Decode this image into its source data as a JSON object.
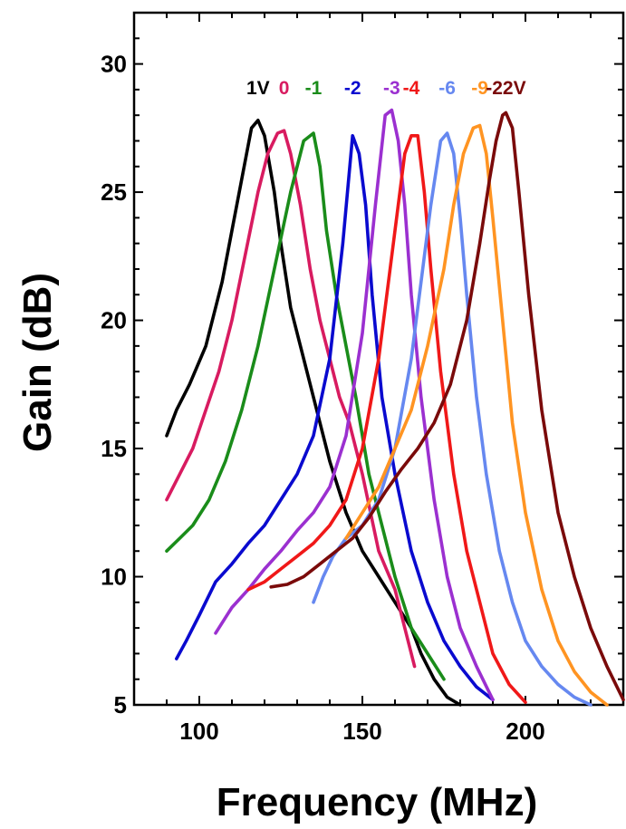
{
  "chart_data": {
    "type": "line",
    "title": "",
    "xlabel": "Frequency (MHz)",
    "ylabel": "Gain (dB)",
    "xlim": [
      80,
      230
    ],
    "ylim": [
      5,
      32
    ],
    "xticks": [
      100,
      150,
      200
    ],
    "yticks": [
      5,
      10,
      15,
      20,
      25,
      30
    ],
    "grid": false,
    "legend": "top, labels placed above each curve peak",
    "series": [
      {
        "name": "1V",
        "color": "#000000",
        "x": [
          90,
          93,
          97,
          102,
          107,
          110,
          113,
          116,
          118,
          120,
          123,
          125,
          128,
          132,
          136,
          140,
          145,
          150,
          155,
          160,
          165,
          168,
          172,
          176,
          180
        ],
        "y": [
          15.5,
          16.5,
          17.5,
          19.0,
          21.5,
          23.5,
          25.5,
          27.5,
          27.8,
          27.2,
          25.0,
          23.0,
          20.5,
          18.5,
          16.5,
          14.5,
          12.5,
          11.0,
          10.0,
          9.0,
          8.0,
          7.0,
          6.0,
          5.3,
          5.0
        ]
      },
      {
        "name": "0",
        "color": "#D81B60",
        "x": [
          90,
          94,
          98,
          102,
          106,
          110,
          114,
          118,
          121,
          124,
          126,
          128,
          131,
          134,
          137,
          140,
          143,
          146,
          150,
          155,
          160,
          163,
          166
        ],
        "y": [
          13.0,
          14.0,
          15.0,
          16.5,
          18.0,
          20.0,
          22.5,
          25.0,
          26.5,
          27.3,
          27.4,
          26.5,
          24.5,
          22.0,
          20.0,
          18.5,
          17.0,
          16.0,
          14.0,
          11.0,
          9.5,
          8.0,
          6.5
        ]
      },
      {
        "name": "-1",
        "color": "#1A8C1A",
        "x": [
          90,
          94,
          98,
          103,
          108,
          113,
          118,
          123,
          128,
          132,
          135,
          137,
          139,
          142,
          145,
          148,
          152,
          156,
          160,
          165,
          170,
          175
        ],
        "y": [
          11.0,
          11.5,
          12.0,
          13.0,
          14.5,
          16.5,
          19.0,
          22.0,
          25.0,
          27.0,
          27.3,
          26.0,
          23.5,
          21.0,
          19.0,
          17.0,
          14.0,
          12.0,
          10.0,
          8.0,
          7.0,
          6.0
        ]
      },
      {
        "name": "-2",
        "color": "#0A0ACF",
        "x": [
          93,
          96,
          100,
          105,
          110,
          115,
          120,
          125,
          130,
          135,
          140,
          144,
          147,
          149,
          151,
          153,
          156,
          160,
          165,
          170,
          175,
          180,
          185,
          190
        ],
        "y": [
          6.8,
          7.5,
          8.5,
          9.8,
          10.5,
          11.3,
          12.0,
          13.0,
          14.0,
          15.5,
          18.5,
          23.0,
          27.2,
          26.5,
          24.5,
          21.0,
          17.0,
          14.0,
          11.0,
          9.0,
          7.5,
          6.5,
          5.7,
          5.2
        ]
      },
      {
        "name": "-3",
        "color": "#9B30D0",
        "x": [
          105,
          110,
          115,
          120,
          125,
          130,
          135,
          140,
          145,
          150,
          154,
          157,
          159,
          161,
          163,
          165,
          168,
          172,
          176,
          180,
          185,
          190
        ],
        "y": [
          7.8,
          8.8,
          9.5,
          10.3,
          11.0,
          11.8,
          12.5,
          13.5,
          15.5,
          19.5,
          24.5,
          28.0,
          28.2,
          27.0,
          24.5,
          21.0,
          17.0,
          13.0,
          10.0,
          8.0,
          6.5,
          5.2
        ]
      },
      {
        "name": "-4",
        "color": "#F01818",
        "x": [
          115,
          120,
          125,
          130,
          135,
          140,
          145,
          150,
          155,
          160,
          163,
          165,
          167,
          169,
          171,
          174,
          178,
          182,
          186,
          190,
          195,
          200
        ],
        "y": [
          9.5,
          9.8,
          10.3,
          10.8,
          11.3,
          12.0,
          13.0,
          15.0,
          18.5,
          23.5,
          26.5,
          27.2,
          27.2,
          25.0,
          22.0,
          18.0,
          14.0,
          11.0,
          9.0,
          7.0,
          5.8,
          5.1
        ]
      },
      {
        "name": "-6",
        "color": "#6688F0",
        "x": [
          135,
          138,
          141,
          145,
          150,
          155,
          160,
          165,
          168,
          171,
          174,
          176,
          178,
          180,
          182,
          185,
          188,
          192,
          196,
          200,
          205,
          210,
          215,
          220
        ],
        "y": [
          9.0,
          10.0,
          10.8,
          11.5,
          12.0,
          13.0,
          15.0,
          18.5,
          21.5,
          24.5,
          27.0,
          27.3,
          26.5,
          24.0,
          21.0,
          17.0,
          14.0,
          11.0,
          9.0,
          7.5,
          6.5,
          5.8,
          5.3,
          5.0
        ]
      },
      {
        "name": "-9",
        "color": "#FF9422",
        "x": [
          145,
          150,
          155,
          160,
          165,
          170,
          175,
          178,
          181,
          184,
          186,
          188,
          190,
          193,
          196,
          200,
          205,
          210,
          215,
          220,
          225
        ],
        "y": [
          11.5,
          12.5,
          13.5,
          15.0,
          16.5,
          19.0,
          22.0,
          24.5,
          26.5,
          27.5,
          27.6,
          26.5,
          24.0,
          20.0,
          16.0,
          12.5,
          9.5,
          7.5,
          6.3,
          5.5,
          5.0
        ]
      },
      {
        "name": "-22V",
        "color": "#7A0A0A",
        "x": [
          122,
          127,
          132,
          137,
          142,
          147,
          152,
          157,
          162,
          167,
          172,
          177,
          182,
          186,
          189,
          191,
          193,
          194,
          196,
          198,
          201,
          205,
          210,
          215,
          220,
          225,
          230
        ],
        "y": [
          9.6,
          9.7,
          10.0,
          10.5,
          11.0,
          11.5,
          12.3,
          13.3,
          14.2,
          15.0,
          16.0,
          17.5,
          20.0,
          23.0,
          25.5,
          27.0,
          28.0,
          28.1,
          27.5,
          25.0,
          21.0,
          16.5,
          12.5,
          10.0,
          8.0,
          6.5,
          5.2
        ]
      }
    ]
  }
}
